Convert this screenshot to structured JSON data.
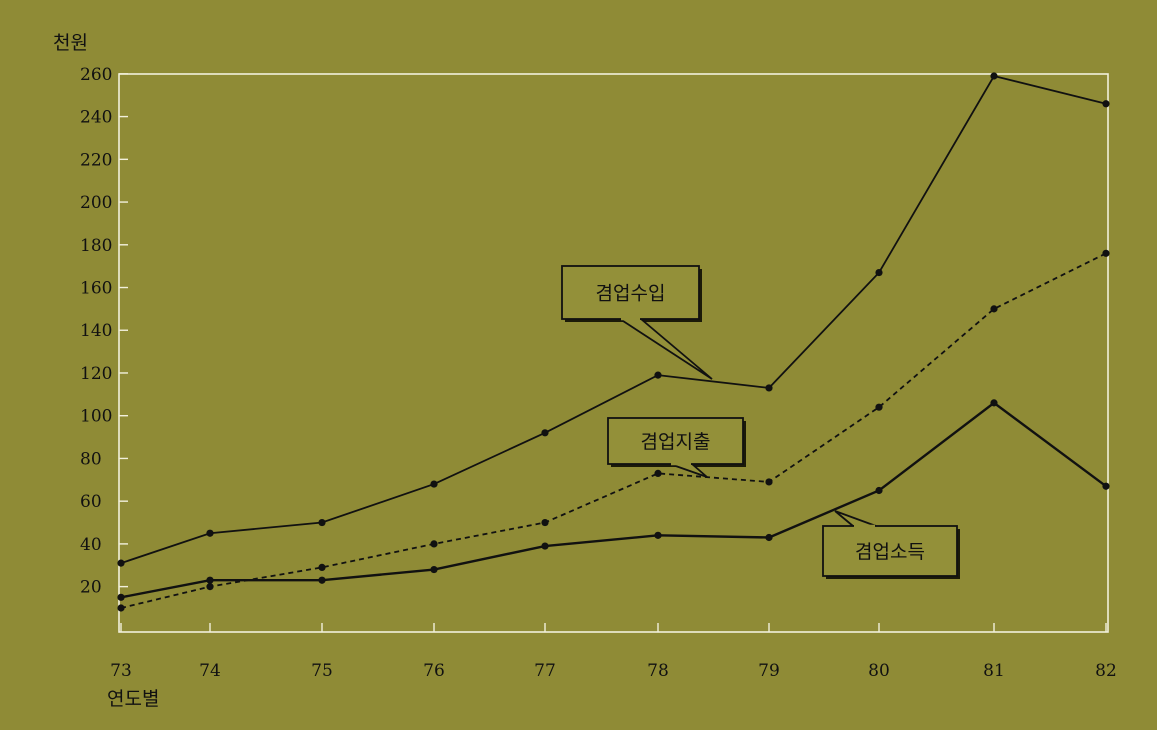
{
  "chart_data": {
    "type": "line",
    "title": "",
    "ylabel": "천원",
    "xlabel": "연도별",
    "x": [
      "73",
      "74",
      "75",
      "76",
      "77",
      "78",
      "79",
      "80",
      "81",
      "82"
    ],
    "ylim": [
      0,
      260
    ],
    "yticks": [
      20,
      40,
      60,
      80,
      100,
      120,
      140,
      160,
      180,
      200,
      220,
      240,
      260
    ],
    "grid": false,
    "legend": "inline-callouts",
    "series": [
      {
        "name": "겸업수입",
        "style": "solid",
        "values": [
          31,
          45,
          50,
          68,
          92,
          119,
          113,
          167,
          259,
          246
        ],
        "callout_anchor_index": 6
      },
      {
        "name": "겸업지출",
        "style": "dashed",
        "values": [
          10,
          20,
          29,
          40,
          50,
          73,
          69,
          104,
          150,
          176
        ],
        "callout_anchor_index": 6
      },
      {
        "name": "겸업소득",
        "style": "solid",
        "values": [
          15,
          23,
          23,
          28,
          39,
          44,
          43,
          65,
          106,
          67
        ],
        "callout_anchor_index": 7
      }
    ]
  },
  "colors": {
    "background": "#8f8b36",
    "axis": "#f2f0dc",
    "line": "#111111",
    "label_box": "#939039",
    "label_border": "#111111"
  }
}
